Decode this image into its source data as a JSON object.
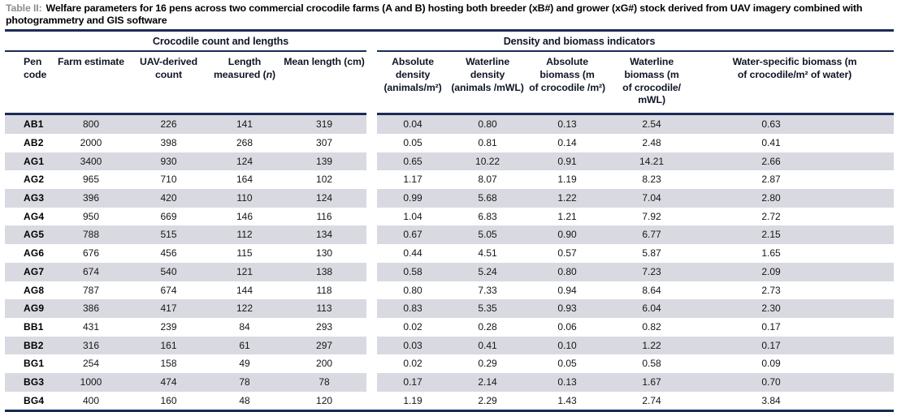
{
  "caption": {
    "label": "Table II:",
    "text": "Welfare parameters for 16 pens across two commercial crocodile farms (A and B) hosting both breeder (xB#) and grower (xG#) stock derived from UAV imagery combined with photogrammetry and GIS software"
  },
  "table": {
    "group_headers": [
      {
        "key": "crocodile-count-and-lengths",
        "label": "Crocodile count and lengths",
        "span": 5
      },
      {
        "key": "density-and-biomass-indicators",
        "label": "Density and biomass indicators",
        "span": 5
      }
    ],
    "columns": [
      {
        "key": "pen-code",
        "lines": [
          "Pen",
          "code"
        ],
        "align": "left"
      },
      {
        "key": "farm-estimate",
        "lines": [
          "Farm estimate"
        ]
      },
      {
        "key": "uav-derived-count",
        "lines": [
          "UAV-derived",
          "count"
        ]
      },
      {
        "key": "length-measured-n",
        "lines": [
          "Length",
          "measured (n)"
        ]
      },
      {
        "key": "mean-length-cm",
        "lines": [
          "Mean length (cm)"
        ]
      },
      {
        "key": "absolute-density",
        "lines": [
          "Absolute density",
          "(animals/m²)"
        ]
      },
      {
        "key": "waterline-density",
        "lines": [
          "Waterline density",
          "(animals /mWL)"
        ]
      },
      {
        "key": "absolute-biomass",
        "lines": [
          "Absolute biomass (m",
          "of crocodile /m²)"
        ]
      },
      {
        "key": "waterline-biomass",
        "lines": [
          "Waterline biomass (m",
          "of crocodile/ mWL)"
        ]
      },
      {
        "key": "water-specific-biomass",
        "lines": [
          "Water-specific biomass (m",
          "of crocodile/m² of water)"
        ]
      }
    ],
    "rows": [
      [
        "AB1",
        "800",
        "226",
        "141",
        "319",
        "0.04",
        "0.80",
        "0.13",
        "2.54",
        "0.63"
      ],
      [
        "AB2",
        "2000",
        "398",
        "268",
        "307",
        "0.05",
        "0.81",
        "0.14",
        "2.48",
        "0.41"
      ],
      [
        "AG1",
        "3400",
        "930",
        "124",
        "139",
        "0.65",
        "10.22",
        "0.91",
        "14.21",
        "2.66"
      ],
      [
        "AG2",
        "965",
        "710",
        "164",
        "102",
        "1.17",
        "8.07",
        "1.19",
        "8.23",
        "2.87"
      ],
      [
        "AG3",
        "396",
        "420",
        "110",
        "124",
        "0.99",
        "5.68",
        "1.22",
        "7.04",
        "2.80"
      ],
      [
        "AG4",
        "950",
        "669",
        "146",
        "116",
        "1.04",
        "6.83",
        "1.21",
        "7.92",
        "2.72"
      ],
      [
        "AG5",
        "788",
        "515",
        "112",
        "134",
        "0.67",
        "5.05",
        "0.90",
        "6.77",
        "2.15"
      ],
      [
        "AG6",
        "676",
        "456",
        "115",
        "130",
        "0.44",
        "4.51",
        "0.57",
        "5.87",
        "1.65"
      ],
      [
        "AG7",
        "674",
        "540",
        "121",
        "138",
        "0.58",
        "5.24",
        "0.80",
        "7.23",
        "2.09"
      ],
      [
        "AG8",
        "787",
        "674",
        "144",
        "118",
        "0.80",
        "7.33",
        "0.94",
        "8.64",
        "2.73"
      ],
      [
        "AG9",
        "386",
        "417",
        "122",
        "113",
        "0.83",
        "5.35",
        "0.93",
        "6.04",
        "2.30"
      ],
      [
        "BB1",
        "431",
        "239",
        "84",
        "293",
        "0.02",
        "0.28",
        "0.06",
        "0.82",
        "0.17"
      ],
      [
        "BB2",
        "316",
        "161",
        "61",
        "297",
        "0.03",
        "0.41",
        "0.10",
        "1.22",
        "0.17"
      ],
      [
        "BG1",
        "254",
        "158",
        "49",
        "200",
        "0.02",
        "0.29",
        "0.05",
        "0.58",
        "0.09"
      ],
      [
        "BG3",
        "1000",
        "474",
        "78",
        "78",
        "0.17",
        "2.14",
        "0.13",
        "1.67",
        "0.70"
      ],
      [
        "BG4",
        "400",
        "160",
        "48",
        "120",
        "1.19",
        "2.29",
        "1.43",
        "2.74",
        "3.84"
      ]
    ]
  },
  "colors": {
    "navy_rule": "#1a2b56",
    "row_stripe": "#d9dae1",
    "caption_label_gray": "#8d8d93"
  }
}
